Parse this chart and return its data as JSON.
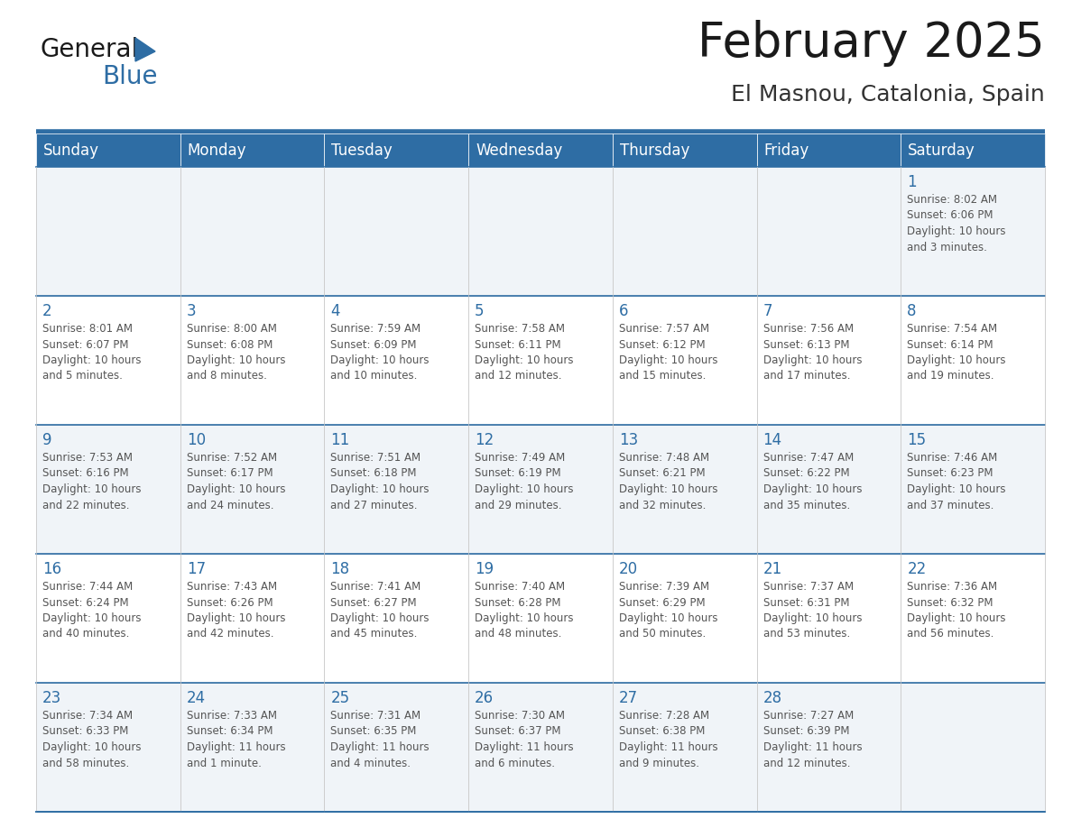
{
  "title": "February 2025",
  "subtitle": "El Masnou, Catalonia, Spain",
  "header_bg": "#2E6DA4",
  "header_text": "#FFFFFF",
  "cell_bg_light": "#F0F4F8",
  "cell_bg_white": "#FFFFFF",
  "day_number_color": "#2E6DA4",
  "info_text_color": "#555555",
  "line_color": "#2E6DA4",
  "cell_border_color": "#CCCCCC",
  "days_of_week": [
    "Sunday",
    "Monday",
    "Tuesday",
    "Wednesday",
    "Thursday",
    "Friday",
    "Saturday"
  ],
  "calendar_data": [
    [
      "",
      "",
      "",
      "",
      "",
      "",
      "1\nSunrise: 8:02 AM\nSunset: 6:06 PM\nDaylight: 10 hours\nand 3 minutes."
    ],
    [
      "2\nSunrise: 8:01 AM\nSunset: 6:07 PM\nDaylight: 10 hours\nand 5 minutes.",
      "3\nSunrise: 8:00 AM\nSunset: 6:08 PM\nDaylight: 10 hours\nand 8 minutes.",
      "4\nSunrise: 7:59 AM\nSunset: 6:09 PM\nDaylight: 10 hours\nand 10 minutes.",
      "5\nSunrise: 7:58 AM\nSunset: 6:11 PM\nDaylight: 10 hours\nand 12 minutes.",
      "6\nSunrise: 7:57 AM\nSunset: 6:12 PM\nDaylight: 10 hours\nand 15 minutes.",
      "7\nSunrise: 7:56 AM\nSunset: 6:13 PM\nDaylight: 10 hours\nand 17 minutes.",
      "8\nSunrise: 7:54 AM\nSunset: 6:14 PM\nDaylight: 10 hours\nand 19 minutes."
    ],
    [
      "9\nSunrise: 7:53 AM\nSunset: 6:16 PM\nDaylight: 10 hours\nand 22 minutes.",
      "10\nSunrise: 7:52 AM\nSunset: 6:17 PM\nDaylight: 10 hours\nand 24 minutes.",
      "11\nSunrise: 7:51 AM\nSunset: 6:18 PM\nDaylight: 10 hours\nand 27 minutes.",
      "12\nSunrise: 7:49 AM\nSunset: 6:19 PM\nDaylight: 10 hours\nand 29 minutes.",
      "13\nSunrise: 7:48 AM\nSunset: 6:21 PM\nDaylight: 10 hours\nand 32 minutes.",
      "14\nSunrise: 7:47 AM\nSunset: 6:22 PM\nDaylight: 10 hours\nand 35 minutes.",
      "15\nSunrise: 7:46 AM\nSunset: 6:23 PM\nDaylight: 10 hours\nand 37 minutes."
    ],
    [
      "16\nSunrise: 7:44 AM\nSunset: 6:24 PM\nDaylight: 10 hours\nand 40 minutes.",
      "17\nSunrise: 7:43 AM\nSunset: 6:26 PM\nDaylight: 10 hours\nand 42 minutes.",
      "18\nSunrise: 7:41 AM\nSunset: 6:27 PM\nDaylight: 10 hours\nand 45 minutes.",
      "19\nSunrise: 7:40 AM\nSunset: 6:28 PM\nDaylight: 10 hours\nand 48 minutes.",
      "20\nSunrise: 7:39 AM\nSunset: 6:29 PM\nDaylight: 10 hours\nand 50 minutes.",
      "21\nSunrise: 7:37 AM\nSunset: 6:31 PM\nDaylight: 10 hours\nand 53 minutes.",
      "22\nSunrise: 7:36 AM\nSunset: 6:32 PM\nDaylight: 10 hours\nand 56 minutes."
    ],
    [
      "23\nSunrise: 7:34 AM\nSunset: 6:33 PM\nDaylight: 10 hours\nand 58 minutes.",
      "24\nSunrise: 7:33 AM\nSunset: 6:34 PM\nDaylight: 11 hours\nand 1 minute.",
      "25\nSunrise: 7:31 AM\nSunset: 6:35 PM\nDaylight: 11 hours\nand 4 minutes.",
      "26\nSunrise: 7:30 AM\nSunset: 6:37 PM\nDaylight: 11 hours\nand 6 minutes.",
      "27\nSunrise: 7:28 AM\nSunset: 6:38 PM\nDaylight: 11 hours\nand 9 minutes.",
      "28\nSunrise: 7:27 AM\nSunset: 6:39 PM\nDaylight: 11 hours\nand 12 minutes.",
      ""
    ]
  ],
  "logo_text_general": "General",
  "logo_text_blue": "Blue",
  "logo_color_general": "#1a1a1a",
  "logo_color_blue": "#2E6DA4",
  "logo_triangle_color": "#2E6DA4",
  "fig_width": 11.88,
  "fig_height": 9.18,
  "dpi": 100
}
